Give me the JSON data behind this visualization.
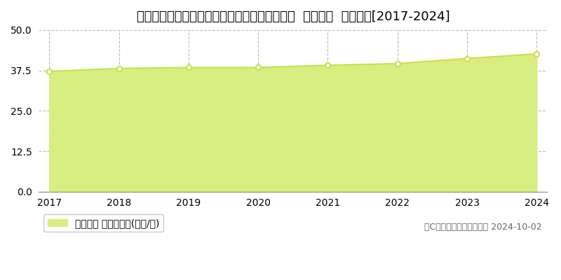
{
  "title": "新潟県新潟市中央区出来島２丁目２８１番１外  基準地価  地価推移[2017-2024]",
  "years": [
    2017,
    2018,
    2019,
    2020,
    2021,
    2022,
    2023,
    2024
  ],
  "values": [
    37.2,
    38.1,
    38.4,
    38.4,
    39.1,
    39.6,
    41.2,
    42.6
  ],
  "ylim": [
    0,
    50
  ],
  "yticks": [
    0,
    12.5,
    25,
    37.5,
    50
  ],
  "line_color": "#c8e050",
  "fill_color": "#d8ee80",
  "bg_color": "#ffffff",
  "grid_color": "#bbbbbb",
  "legend_label": "基準地価 平均坪単価(万円/坪)",
  "copyright_text": "（C）土地価格ドットコム 2024-10-02",
  "title_fontsize": 13,
  "tick_fontsize": 10,
  "legend_fontsize": 10,
  "copyright_fontsize": 9
}
